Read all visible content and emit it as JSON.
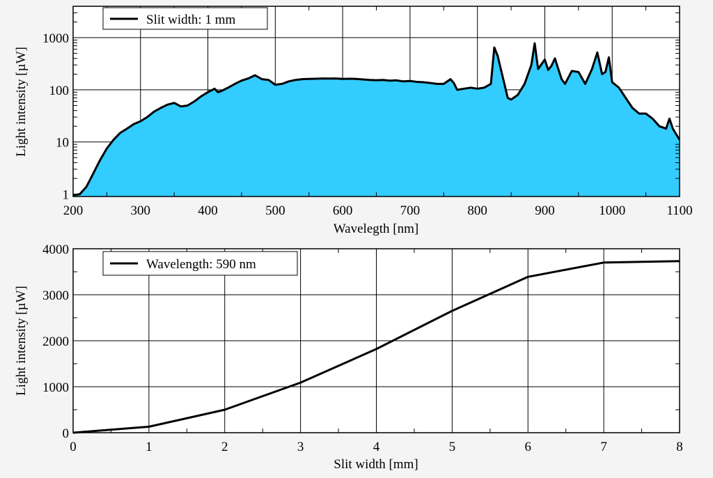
{
  "chart_data": [
    {
      "type": "area",
      "xlabel": "Wavelegth [nm]",
      "ylabel": "Light intensity [µW]",
      "xlim": [
        200,
        1100
      ],
      "ylim": [
        0.9,
        4000
      ],
      "yscale": "log",
      "grid": true,
      "legend": {
        "position": "top-left",
        "label": "Slit width: 1 mm"
      },
      "fill_color": "#33ccff",
      "line_color": "#000000",
      "x_ticks": [
        200,
        300,
        400,
        500,
        600,
        700,
        800,
        900,
        1000,
        1100
      ],
      "x_tick_labels": [
        "200",
        "300",
        "400",
        "500",
        "600",
        "700",
        "800",
        "900",
        "1000",
        "1100"
      ],
      "y_ticks": [
        1,
        10,
        100,
        1000
      ],
      "y_tick_labels": [
        "1",
        "10",
        "100",
        "1000"
      ],
      "x": [
        200,
        210,
        220,
        230,
        240,
        250,
        260,
        270,
        280,
        290,
        300,
        310,
        320,
        330,
        340,
        350,
        360,
        370,
        380,
        390,
        400,
        410,
        415,
        420,
        430,
        440,
        450,
        460,
        470,
        480,
        490,
        500,
        510,
        520,
        530,
        540,
        550,
        560,
        570,
        580,
        590,
        600,
        610,
        620,
        630,
        640,
        650,
        660,
        670,
        680,
        690,
        700,
        710,
        720,
        730,
        740,
        750,
        760,
        765,
        770,
        780,
        790,
        800,
        810,
        820,
        825,
        830,
        840,
        845,
        850,
        860,
        870,
        880,
        885,
        890,
        900,
        905,
        910,
        915,
        920,
        925,
        930,
        940,
        950,
        960,
        970,
        978,
        985,
        990,
        995,
        1000,
        1010,
        1020,
        1030,
        1040,
        1050,
        1060,
        1070,
        1080,
        1085,
        1090,
        1100
      ],
      "y": [
        0.95,
        1.0,
        1.4,
        2.5,
        4.5,
        7.5,
        11,
        15,
        18,
        22,
        25,
        30,
        38,
        45,
        52,
        56,
        48,
        50,
        60,
        75,
        90,
        105,
        90,
        95,
        110,
        130,
        150,
        165,
        190,
        160,
        155,
        125,
        130,
        145,
        155,
        160,
        162,
        163,
        165,
        164,
        165,
        162,
        163,
        162,
        158,
        155,
        153,
        155,
        150,
        152,
        145,
        148,
        142,
        140,
        135,
        130,
        130,
        160,
        135,
        100,
        105,
        110,
        105,
        110,
        130,
        650,
        450,
        130,
        70,
        65,
        80,
        130,
        300,
        780,
        250,
        380,
        240,
        290,
        400,
        250,
        160,
        130,
        230,
        220,
        130,
        250,
        520,
        200,
        220,
        420,
        140,
        110,
        70,
        45,
        35,
        35,
        28,
        20,
        18,
        28,
        18,
        11
      ]
    },
    {
      "type": "line",
      "xlabel": "Slit width [mm]",
      "ylabel": "Light intensity [µW]",
      "xlim": [
        0,
        8
      ],
      "ylim": [
        0,
        4000
      ],
      "grid": true,
      "legend": {
        "position": "top-left",
        "label": "Wavelength: 590 nm"
      },
      "line_color": "#000000",
      "x_ticks": [
        0,
        1,
        2,
        3,
        4,
        5,
        6,
        7,
        8
      ],
      "x_tick_labels": [
        "0",
        "1",
        "2",
        "3",
        "4",
        "5",
        "6",
        "7",
        "8"
      ],
      "y_ticks": [
        0,
        1000,
        2000,
        3000,
        4000
      ],
      "y_tick_labels": [
        "0",
        "1000",
        "2000",
        "3000",
        "4000"
      ],
      "x": [
        0,
        1,
        2,
        3,
        4,
        5,
        6,
        7,
        8
      ],
      "y": [
        0,
        130,
        500,
        1090,
        1820,
        2650,
        3390,
        3700,
        3730
      ]
    }
  ]
}
